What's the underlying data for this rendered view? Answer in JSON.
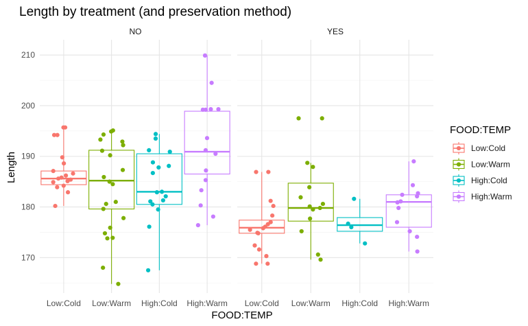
{
  "chart_data": {
    "type": "boxplot",
    "title": "Length by treatment (and preservation method)",
    "xlabel": "FOOD:TEMP",
    "ylabel": "Length",
    "ylim": [
      163,
      213
    ],
    "yticks": [
      170,
      180,
      190,
      200,
      210
    ],
    "grid": true,
    "legend": {
      "title": "FOOD:TEMP",
      "position": "right"
    },
    "categories": [
      "Low:Cold",
      "Low:Warm",
      "High:Cold",
      "High:Warm"
    ],
    "colors": {
      "Low:Cold": "#F8766D",
      "Low:Warm": "#7CAE00",
      "High:Cold": "#00BFC4",
      "High:Warm": "#C77CFF"
    },
    "panels": [
      {
        "label": "NO",
        "groups": [
          {
            "category": "Low:Cold",
            "box": {
              "min": 180.2,
              "q1": 184.4,
              "median": 185.6,
              "q3": 187.1,
              "max": 195.7
            },
            "points": [
              195.7,
              195.7,
              194.2,
              194.2,
              189.8,
              188.6,
              187.1,
              186.6,
              186.2,
              185.8,
              185.6,
              185.4,
              185.1,
              184.9,
              184.2,
              183.9,
              182.9,
              180.2
            ]
          },
          {
            "category": "Low:Warm",
            "box": {
              "min": 164.8,
              "q1": 179.6,
              "median": 185.2,
              "q3": 191.2,
              "max": 195.1
            },
            "points": [
              195.1,
              194.9,
              194.3,
              193.3,
              192.9,
              192.2,
              191.1,
              190.2,
              187.3,
              185.9,
              185.0,
              184.5,
              181.0,
              180.6,
              179.6,
              177.8,
              175.9,
              174.8,
              173.9,
              173.8,
              168.0,
              164.8
            ]
          },
          {
            "category": "High:Cold",
            "box": {
              "min": 167.5,
              "q1": 180.5,
              "median": 183.0,
              "q3": 190.5,
              "max": 194.4
            },
            "points": [
              194.4,
              193.5,
              191.2,
              190.9,
              188.8,
              188.1,
              187.8,
              186.7,
              183.0,
              182.9,
              182.1,
              181.3,
              181.1,
              180.5,
              179.5,
              176.1,
              167.5
            ]
          },
          {
            "category": "High:Warm",
            "box": {
              "min": 176.4,
              "q1": 186.5,
              "median": 190.9,
              "q3": 198.9,
              "max": 209.9
            },
            "points": [
              209.9,
              204.5,
              199.3,
              199.3,
              199.2,
              199.2,
              193.6,
              191.2,
              190.5,
              187.2,
              185.3,
              183.3,
              180.3,
              178.1,
              176.4
            ]
          }
        ]
      },
      {
        "label": "YES",
        "groups": [
          {
            "category": "Low:Cold",
            "box": {
              "min": 168.8,
              "q1": 174.8,
              "median": 175.9,
              "q3": 177.4,
              "max": 186.9
            },
            "points": [
              186.9,
              186.9,
              181.2,
              180.2,
              178.3,
              177.0,
              176.6,
              176.1,
              175.8,
              175.5,
              174.9,
              174.8,
              172.4,
              171.6,
              170.3,
              168.8,
              168.8
            ]
          },
          {
            "category": "Low:Warm",
            "box": {
              "min": 169.6,
              "q1": 177.2,
              "median": 179.8,
              "q3": 184.7,
              "max": 188.7
            },
            "points": [
              197.5,
              197.5,
              188.7,
              187.9,
              183.9,
              181.9,
              180.6,
              180.1,
              179.8,
              179.5,
              177.7,
              175.2,
              170.6,
              169.6
            ]
          },
          {
            "category": "High:Cold",
            "box": {
              "min": 172.8,
              "q1": 175.2,
              "median": 176.4,
              "q3": 177.9,
              "max": 181.6
            },
            "points": [
              181.6,
              176.7,
              176.0,
              172.8
            ]
          },
          {
            "category": "High:Warm",
            "box": {
              "min": 171.2,
              "q1": 176.0,
              "median": 181.0,
              "q3": 182.4,
              "max": 189.0
            },
            "points": [
              189.0,
              184.3,
              182.7,
              182.4,
              182.1,
              181.1,
              180.9,
              179.8,
              177.0,
              175.2,
              174.1,
              171.2
            ]
          }
        ]
      }
    ]
  }
}
